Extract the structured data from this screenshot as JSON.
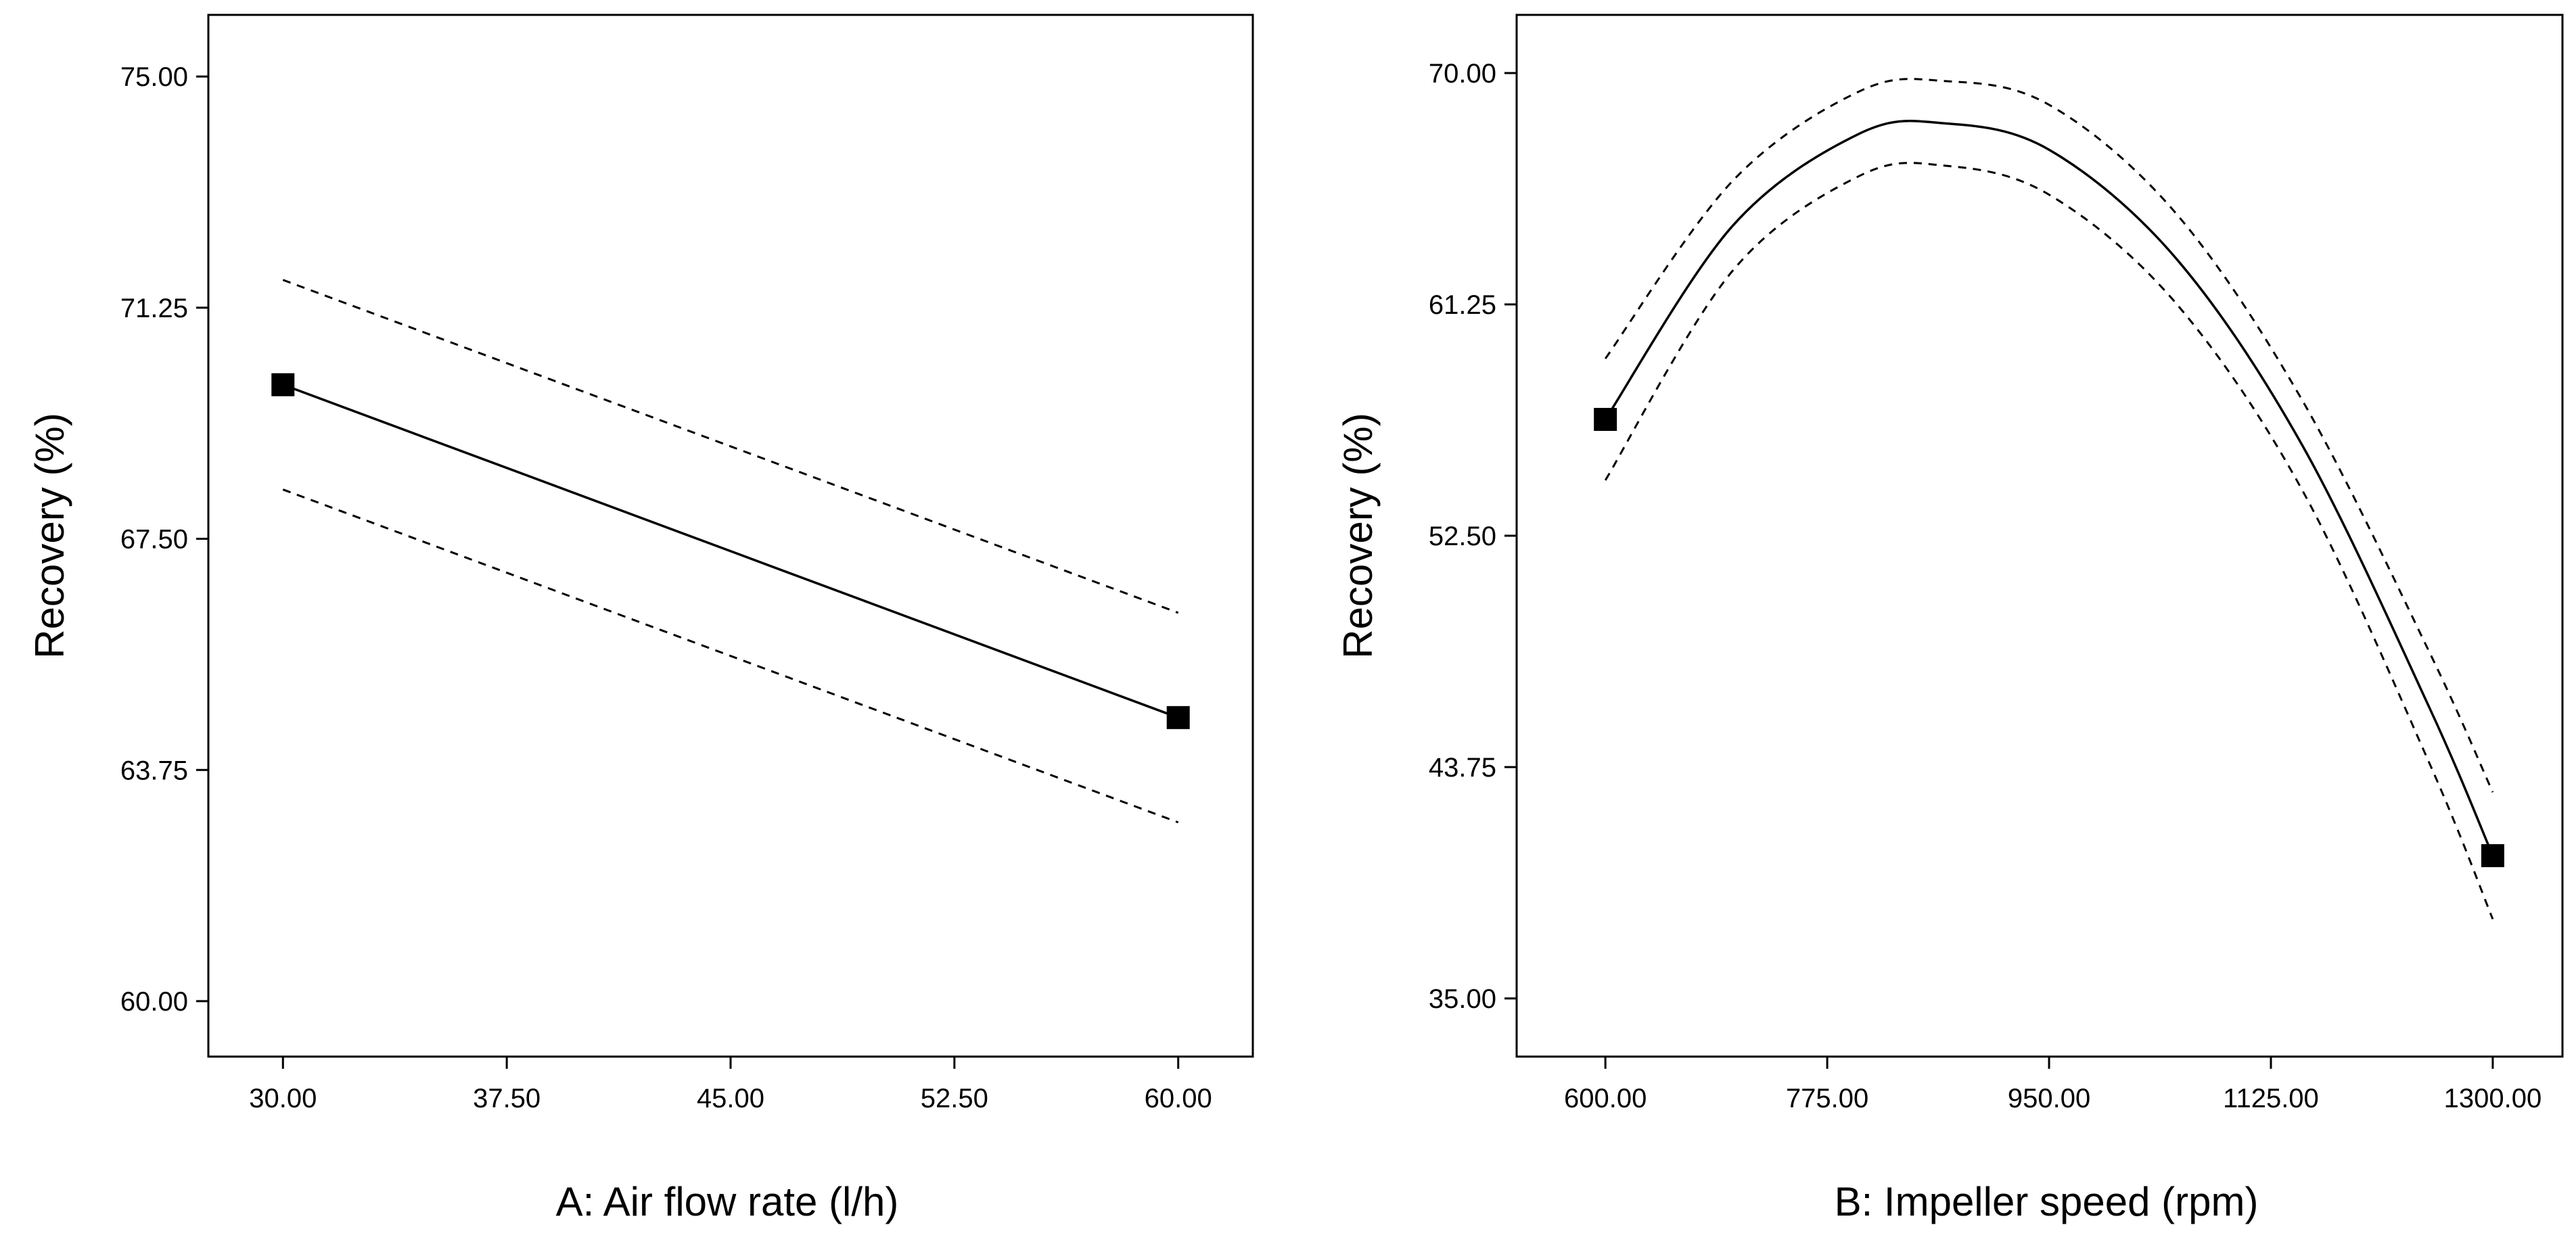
{
  "chart_data": [
    {
      "type": "line",
      "title": "",
      "xlabel": "A: Air flow rate (l/h)",
      "ylabel": "Recovery (%)",
      "xlim": [
        27.5,
        62.5
      ],
      "ylim": [
        59.1,
        76.0
      ],
      "xticks": [
        30,
        37.5,
        45,
        52.5,
        60
      ],
      "xtick_labels": [
        "30.00",
        "37.50",
        "45.00",
        "52.50",
        "60.00"
      ],
      "yticks": [
        60,
        63.75,
        67.5,
        71.25,
        75
      ],
      "ytick_labels": [
        "60.00",
        "63.75",
        "67.50",
        "71.25",
        "75.00"
      ],
      "grid": false,
      "series": [
        {
          "name": "prediction",
          "style": "solid",
          "x": [
            30,
            60
          ],
          "y": [
            70.0,
            64.6
          ]
        },
        {
          "name": "upper confidence band",
          "style": "dashed",
          "x": [
            30,
            60
          ],
          "y": [
            71.7,
            66.3
          ]
        },
        {
          "name": "lower confidence band",
          "style": "dashed",
          "x": [
            30,
            60
          ],
          "y": [
            68.3,
            62.9
          ]
        }
      ],
      "points": [
        {
          "x": 30,
          "y": 70.0
        },
        {
          "x": 60,
          "y": 64.6
        }
      ]
    },
    {
      "type": "line",
      "title": "",
      "xlabel": "B: Impeller speed (rpm)",
      "ylabel": "Recovery (%)",
      "xlim": [
        530,
        1355
      ],
      "ylim": [
        32.8,
        72.2
      ],
      "xticks": [
        600,
        775,
        950,
        1125,
        1300
      ],
      "xtick_labels": [
        "600.00",
        "775.00",
        "950.00",
        "1125.00",
        "1300.00"
      ],
      "yticks": [
        35,
        43.75,
        52.5,
        61.25,
        70
      ],
      "ytick_labels": [
        "35.00",
        "43.75",
        "52.50",
        "61.25",
        "70.00"
      ],
      "grid": false,
      "series": [
        {
          "name": "prediction",
          "style": "solid",
          "x": [
            600,
            700,
            800,
            867,
            950,
            1050,
            1150,
            1250,
            1300
          ],
          "y": [
            56.9,
            64.2,
            67.7,
            68.1,
            67.1,
            63.0,
            55.9,
            46.0,
            40.4
          ]
        },
        {
          "name": "upper confidence band",
          "style": "dashed",
          "x": [
            600,
            700,
            800,
            867,
            950,
            1050,
            1150,
            1250,
            1300
          ],
          "y": [
            59.2,
            65.9,
            69.3,
            69.7,
            68.8,
            64.7,
            57.6,
            48.1,
            42.8
          ]
        },
        {
          "name": "lower confidence band",
          "style": "dashed",
          "x": [
            600,
            700,
            800,
            867,
            950,
            1050,
            1150,
            1250,
            1300
          ],
          "y": [
            54.6,
            62.5,
            66.1,
            66.5,
            65.4,
            61.3,
            54.2,
            43.9,
            38.0
          ]
        }
      ],
      "points": [
        {
          "x": 600,
          "y": 56.9
        },
        {
          "x": 1300,
          "y": 40.4
        }
      ]
    }
  ]
}
